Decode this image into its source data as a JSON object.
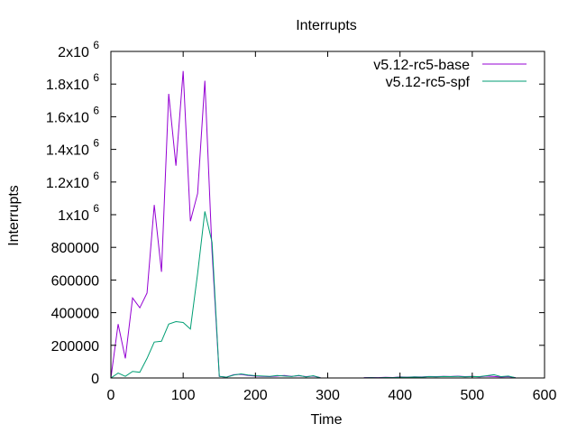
{
  "chart_data": {
    "type": "line",
    "title": "Interrupts",
    "xlabel": "Time",
    "ylabel": "Interrupts",
    "xlim": [
      0,
      600
    ],
    "ylim": [
      0,
      2000000
    ],
    "x_ticks": [
      0,
      100,
      200,
      300,
      400,
      500,
      600
    ],
    "x_tick_labels": [
      "0",
      "100",
      "200",
      "300",
      "400",
      "500",
      "600"
    ],
    "y_ticks": [
      0,
      200000,
      400000,
      600000,
      800000,
      1000000,
      1200000,
      1400000,
      1600000,
      1800000,
      2000000
    ],
    "y_tick_labels": [
      {
        "base": "0",
        "exp": ""
      },
      {
        "base": "200000",
        "exp": ""
      },
      {
        "base": "400000",
        "exp": ""
      },
      {
        "base": "600000",
        "exp": ""
      },
      {
        "base": "800000",
        "exp": ""
      },
      {
        "base": "1x10",
        "exp": "6"
      },
      {
        "base": "1.2x10",
        "exp": "6"
      },
      {
        "base": "1.4x10",
        "exp": "6"
      },
      {
        "base": "1.6x10",
        "exp": "6"
      },
      {
        "base": "1.8x10",
        "exp": "6"
      },
      {
        "base": "2x10",
        "exp": "6"
      }
    ],
    "grid": false,
    "legend_position": "top-right",
    "series": [
      {
        "name": "v5.12-rc5-base",
        "color": "#9400d3",
        "points": [
          [
            0,
            0
          ],
          [
            10,
            330000
          ],
          [
            20,
            120000
          ],
          [
            30,
            490000
          ],
          [
            40,
            430000
          ],
          [
            50,
            520000
          ],
          [
            60,
            1060000
          ],
          [
            70,
            650000
          ],
          [
            80,
            1740000
          ],
          [
            90,
            1300000
          ],
          [
            100,
            1880000
          ],
          [
            110,
            960000
          ],
          [
            120,
            1130000
          ],
          [
            130,
            1820000
          ],
          [
            140,
            770000
          ],
          [
            150,
            10000
          ],
          [
            160,
            5000
          ],
          [
            170,
            20000
          ],
          [
            180,
            22000
          ],
          [
            190,
            15000
          ],
          [
            200,
            12000
          ],
          [
            210,
            10000
          ],
          [
            220,
            8000
          ],
          [
            230,
            12000
          ],
          [
            240,
            15000
          ],
          [
            250,
            10000
          ],
          [
            260,
            14000
          ],
          [
            270,
            8000
          ],
          [
            280,
            12000
          ],
          [
            290,
            2000
          ],
          [
            350,
            2000
          ],
          [
            360,
            3000
          ],
          [
            370,
            2000
          ],
          [
            380,
            4000
          ],
          [
            390,
            3000
          ],
          [
            400,
            6000
          ],
          [
            410,
            5000
          ],
          [
            420,
            7000
          ],
          [
            430,
            6000
          ],
          [
            440,
            9000
          ],
          [
            450,
            8000
          ],
          [
            460,
            10000
          ],
          [
            470,
            9000
          ],
          [
            480,
            11000
          ],
          [
            490,
            8000
          ],
          [
            500,
            10000
          ],
          [
            510,
            7000
          ],
          [
            520,
            12000
          ],
          [
            530,
            9000
          ],
          [
            540,
            6000
          ],
          [
            550,
            8000
          ],
          [
            560,
            2000
          ]
        ]
      },
      {
        "name": "v5.12-rc5-spf",
        "color": "#009e73",
        "points": [
          [
            0,
            0
          ],
          [
            10,
            30000
          ],
          [
            20,
            10000
          ],
          [
            30,
            40000
          ],
          [
            40,
            35000
          ],
          [
            50,
            120000
          ],
          [
            60,
            220000
          ],
          [
            70,
            225000
          ],
          [
            80,
            330000
          ],
          [
            90,
            345000
          ],
          [
            100,
            340000
          ],
          [
            110,
            300000
          ],
          [
            120,
            640000
          ],
          [
            130,
            1020000
          ],
          [
            140,
            830000
          ],
          [
            150,
            10000
          ],
          [
            160,
            5000
          ],
          [
            170,
            18000
          ],
          [
            180,
            25000
          ],
          [
            190,
            18000
          ],
          [
            200,
            14000
          ],
          [
            210,
            12000
          ],
          [
            220,
            10000
          ],
          [
            230,
            15000
          ],
          [
            240,
            12000
          ],
          [
            250,
            9000
          ],
          [
            260,
            16000
          ],
          [
            270,
            6000
          ],
          [
            280,
            14000
          ],
          [
            290,
            1000
          ],
          [
            350,
            1000
          ],
          [
            360,
            2000
          ],
          [
            370,
            1000
          ],
          [
            380,
            3000
          ],
          [
            390,
            2000
          ],
          [
            400,
            5000
          ],
          [
            410,
            4000
          ],
          [
            420,
            6000
          ],
          [
            430,
            5000
          ],
          [
            440,
            8000
          ],
          [
            450,
            7000
          ],
          [
            460,
            9000
          ],
          [
            470,
            8000
          ],
          [
            480,
            10000
          ],
          [
            490,
            7000
          ],
          [
            500,
            9000
          ],
          [
            510,
            8000
          ],
          [
            520,
            14000
          ],
          [
            530,
            20000
          ],
          [
            540,
            8000
          ],
          [
            550,
            12000
          ],
          [
            560,
            1000
          ]
        ]
      }
    ]
  }
}
